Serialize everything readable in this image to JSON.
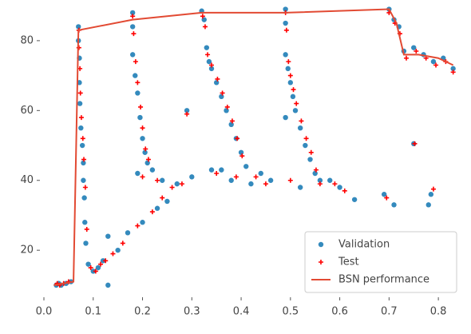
{
  "chart_data": {
    "type": "scatter",
    "xlim": [
      0,
      0.85
    ],
    "ylim": [
      7,
      90.5
    ],
    "xticks": [
      {
        "value": 0,
        "label": "0.0"
      },
      0.1,
      0.2,
      0.3,
      0.4,
      0.5,
      0.6,
      0.7,
      0.8
    ],
    "yticks": [
      20,
      40,
      60,
      80
    ],
    "legend": "lower right",
    "series": [
      {
        "name": "Validation",
        "color": "#348abd",
        "marker": "circle",
        "x": [
          0.025,
          0.03,
          0.035,
          0.045,
          0.055,
          0.07,
          0.07,
          0.072,
          0.072,
          0.073,
          0.075,
          0.078,
          0.08,
          0.08,
          0.082,
          0.083,
          0.085,
          0.09,
          0.1,
          0.11,
          0.12,
          0.13,
          0.13,
          0.15,
          0.17,
          0.2,
          0.23,
          0.25,
          0.18,
          0.18,
          0.18,
          0.185,
          0.19,
          0.195,
          0.2,
          0.205,
          0.21,
          0.22,
          0.19,
          0.24,
          0.27,
          0.29,
          0.3,
          0.32,
          0.325,
          0.33,
          0.335,
          0.34,
          0.35,
          0.36,
          0.37,
          0.38,
          0.39,
          0.4,
          0.41,
          0.34,
          0.36,
          0.38,
          0.42,
          0.44,
          0.46,
          0.49,
          0.49,
          0.49,
          0.495,
          0.5,
          0.505,
          0.51,
          0.52,
          0.53,
          0.54,
          0.55,
          0.56,
          0.49,
          0.52,
          0.58,
          0.6,
          0.63,
          0.7,
          0.71,
          0.72,
          0.73,
          0.75,
          0.77,
          0.79,
          0.81,
          0.83,
          0.69,
          0.71,
          0.75,
          0.78,
          0.785
        ],
        "values": [
          10,
          10.5,
          10,
          10.5,
          11,
          84,
          80,
          75,
          68,
          62,
          55,
          50,
          45,
          40,
          35,
          28,
          22,
          16,
          14,
          15,
          17,
          24,
          10,
          20,
          25,
          28,
          32,
          34,
          88,
          84,
          76,
          70,
          65,
          58,
          52,
          48,
          45,
          43,
          42,
          40,
          39,
          60,
          41,
          88.5,
          86,
          78,
          74,
          72,
          68,
          64,
          60,
          56,
          52,
          48,
          44,
          43,
          43,
          40,
          39,
          42,
          40,
          89,
          85,
          76,
          72,
          68,
          64,
          60,
          55,
          50,
          46,
          42,
          40,
          58,
          38,
          40,
          38,
          34.5,
          89,
          86,
          84,
          77,
          78,
          76,
          74,
          75,
          72,
          36,
          33,
          50.5,
          33,
          36
        ]
      },
      {
        "name": "Test",
        "color": "#ff0000",
        "marker": "plus",
        "x": [
          0.027,
          0.032,
          0.04,
          0.05,
          0.071,
          0.071,
          0.073,
          0.074,
          0.076,
          0.079,
          0.081,
          0.084,
          0.087,
          0.095,
          0.105,
          0.115,
          0.125,
          0.14,
          0.16,
          0.19,
          0.22,
          0.24,
          0.18,
          0.182,
          0.186,
          0.19,
          0.196,
          0.2,
          0.206,
          0.212,
          0.2,
          0.23,
          0.26,
          0.28,
          0.29,
          0.322,
          0.327,
          0.332,
          0.34,
          0.352,
          0.362,
          0.372,
          0.382,
          0.392,
          0.402,
          0.35,
          0.39,
          0.43,
          0.45,
          0.49,
          0.492,
          0.496,
          0.5,
          0.506,
          0.512,
          0.522,
          0.532,
          0.542,
          0.552,
          0.5,
          0.56,
          0.59,
          0.61,
          0.7,
          0.712,
          0.722,
          0.735,
          0.755,
          0.775,
          0.795,
          0.815,
          0.83,
          0.695,
          0.752,
          0.79
        ],
        "values": [
          10.5,
          10,
          10.5,
          11,
          83,
          78,
          72,
          65,
          58,
          52,
          46,
          38,
          26,
          15,
          14,
          16,
          17,
          19,
          22,
          27,
          31,
          35,
          87,
          82,
          74,
          68,
          61,
          55,
          49,
          46,
          41,
          40,
          38,
          39,
          59,
          87,
          84,
          76,
          73,
          69,
          65,
          61,
          57,
          52,
          47,
          42,
          41,
          41,
          39,
          88,
          83,
          74,
          70,
          66,
          62,
          57,
          52,
          48,
          43,
          40,
          39,
          39,
          37,
          88,
          85,
          82,
          75,
          77,
          75,
          73,
          74,
          71,
          35,
          50.5,
          37.5
        ]
      },
      {
        "name": "BSN performance",
        "color": "#e24a33",
        "marker": "line",
        "x": [
          0.02,
          0.06,
          0.07,
          0.18,
          0.32,
          0.49,
          0.7,
          0.715,
          0.73,
          0.76,
          0.8,
          0.83
        ],
        "values": [
          10,
          11,
          83,
          86,
          88,
          88,
          89,
          85,
          76,
          76,
          75,
          73
        ]
      }
    ]
  }
}
